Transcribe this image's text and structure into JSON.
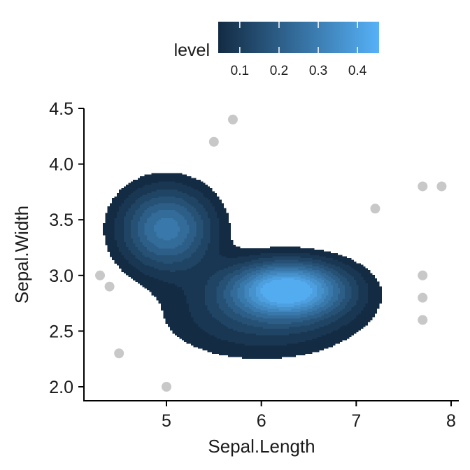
{
  "chart_data": {
    "type": "density2d",
    "xlabel": "Sepal.Length",
    "ylabel": "Sepal.Width",
    "x_ticks": [
      5,
      6,
      7,
      8
    ],
    "y_ticks": [
      2.0,
      2.5,
      3.0,
      3.5,
      4.0,
      4.5
    ],
    "x_tick_labels": [
      "5",
      "6",
      "7",
      "8"
    ],
    "y_tick_labels": [
      "2.0",
      "2.5",
      "3.0",
      "3.5",
      "4.0",
      "4.5"
    ],
    "xlim": [
      4.15,
      8.1
    ],
    "ylim": [
      1.88,
      4.6
    ],
    "legend": {
      "title": "level",
      "position": "top",
      "ticks": [
        0.1,
        0.2,
        0.3,
        0.4
      ],
      "tick_labels": [
        "0.1",
        "0.2",
        "0.3",
        "0.4"
      ],
      "range": [
        0.045,
        0.455
      ],
      "color_low": "#132B43",
      "color_high": "#56B1F7"
    },
    "points": [
      {
        "x": 4.3,
        "y": 3.0
      },
      {
        "x": 4.4,
        "y": 2.9
      },
      {
        "x": 4.5,
        "y": 2.3
      },
      {
        "x": 5.0,
        "y": 2.0
      },
      {
        "x": 5.5,
        "y": 4.2
      },
      {
        "x": 5.7,
        "y": 4.4
      },
      {
        "x": 7.2,
        "y": 3.6
      },
      {
        "x": 7.7,
        "y": 3.8
      },
      {
        "x": 7.9,
        "y": 3.8
      },
      {
        "x": 7.7,
        "y": 3.0
      },
      {
        "x": 7.7,
        "y": 2.8
      },
      {
        "x": 7.7,
        "y": 2.6
      }
    ],
    "density_modes": [
      {
        "x": 5.0,
        "y": 3.42,
        "sx": 0.34,
        "sy": 0.26,
        "weight": 0.3
      },
      {
        "x": 6.28,
        "y": 2.88,
        "sx": 0.42,
        "sy": 0.17,
        "weight": 0.455
      },
      {
        "x": 6.0,
        "y": 2.62,
        "sx": 0.7,
        "sy": 0.26,
        "weight": 0.12
      }
    ],
    "contour_levels": [
      0.045,
      0.08,
      0.12,
      0.16,
      0.2,
      0.24,
      0.28,
      0.32,
      0.36,
      0.4,
      0.44
    ],
    "point_color": "#C8C8C8",
    "grid": false
  }
}
